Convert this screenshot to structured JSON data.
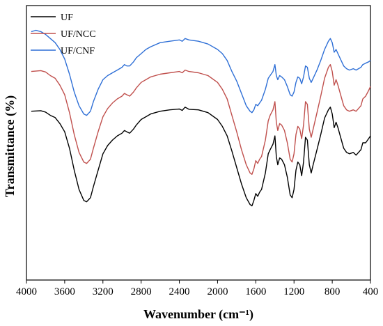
{
  "chart_data": {
    "type": "line",
    "xlabel": "Wavenumber (cm⁻¹)",
    "ylabel": "Transmittance (%)",
    "xlim": [
      4000,
      400
    ],
    "x_reversed": true,
    "y_ticks_shown": false,
    "grid": false,
    "legend_position": "top-left",
    "x_ticks": [
      4000,
      3600,
      3200,
      2800,
      2400,
      2000,
      1600,
      1200,
      800,
      400
    ],
    "ylim": [
      0,
      100
    ],
    "series": [
      {
        "name": "UF",
        "color": "#000000",
        "points": [
          [
            3950,
            61.5
          ],
          [
            3850,
            61.7
          ],
          [
            3800,
            61.2
          ],
          [
            3750,
            60.0
          ],
          [
            3700,
            59.2
          ],
          [
            3650,
            57.0
          ],
          [
            3600,
            54.0
          ],
          [
            3550,
            48.0
          ],
          [
            3500,
            40.0
          ],
          [
            3450,
            33.0
          ],
          [
            3400,
            29.0
          ],
          [
            3370,
            28.5
          ],
          [
            3330,
            30.0
          ],
          [
            3300,
            34.0
          ],
          [
            3250,
            40.0
          ],
          [
            3200,
            46.0
          ],
          [
            3150,
            49.0
          ],
          [
            3100,
            51.0
          ],
          [
            3050,
            52.5
          ],
          [
            3000,
            53.5
          ],
          [
            2975,
            54.5
          ],
          [
            2950,
            54.0
          ],
          [
            2920,
            53.5
          ],
          [
            2880,
            55.0
          ],
          [
            2850,
            56.5
          ],
          [
            2800,
            58.5
          ],
          [
            2750,
            59.5
          ],
          [
            2700,
            60.5
          ],
          [
            2600,
            61.5
          ],
          [
            2500,
            62.0
          ],
          [
            2400,
            62.3
          ],
          [
            2370,
            61.8
          ],
          [
            2340,
            63.0
          ],
          [
            2300,
            62.2
          ],
          [
            2200,
            62.0
          ],
          [
            2100,
            61.0
          ],
          [
            2000,
            58.5
          ],
          [
            1950,
            56.0
          ],
          [
            1900,
            52.5
          ],
          [
            1850,
            47.0
          ],
          [
            1800,
            41.0
          ],
          [
            1750,
            35.0
          ],
          [
            1700,
            30.0
          ],
          [
            1660,
            27.5
          ],
          [
            1640,
            27.0
          ],
          [
            1620,
            29.0
          ],
          [
            1600,
            31.5
          ],
          [
            1580,
            30.5
          ],
          [
            1560,
            32.0
          ],
          [
            1540,
            33.0
          ],
          [
            1500,
            39.0
          ],
          [
            1470,
            46.0
          ],
          [
            1450,
            47.5
          ],
          [
            1420,
            49.5
          ],
          [
            1400,
            52.5
          ],
          [
            1385,
            45.0
          ],
          [
            1370,
            42.0
          ],
          [
            1350,
            44.5
          ],
          [
            1330,
            44.0
          ],
          [
            1300,
            42.0
          ],
          [
            1270,
            37.5
          ],
          [
            1240,
            31.0
          ],
          [
            1220,
            30.0
          ],
          [
            1200,
            33.0
          ],
          [
            1180,
            40.0
          ],
          [
            1160,
            43.0
          ],
          [
            1140,
            42.0
          ],
          [
            1120,
            38.0
          ],
          [
            1100,
            43.0
          ],
          [
            1080,
            52.0
          ],
          [
            1060,
            51.0
          ],
          [
            1040,
            42.0
          ],
          [
            1020,
            39.0
          ],
          [
            1000,
            42.0
          ],
          [
            960,
            47.5
          ],
          [
            920,
            53.0
          ],
          [
            880,
            59.0
          ],
          [
            840,
            62.0
          ],
          [
            820,
            63.0
          ],
          [
            800,
            60.5
          ],
          [
            780,
            55.5
          ],
          [
            760,
            57.5
          ],
          [
            740,
            55.5
          ],
          [
            700,
            50.5
          ],
          [
            680,
            48.0
          ],
          [
            650,
            46.5
          ],
          [
            620,
            46.0
          ],
          [
            580,
            46.5
          ],
          [
            550,
            45.5
          ],
          [
            500,
            47.5
          ],
          [
            480,
            50.0
          ],
          [
            450,
            50.0
          ],
          [
            420,
            51.5
          ],
          [
            400,
            52.5
          ]
        ]
      },
      {
        "name": "UF/NCC",
        "color": "#c0504d",
        "points": [
          [
            3950,
            76.0
          ],
          [
            3850,
            76.3
          ],
          [
            3800,
            75.8
          ],
          [
            3750,
            74.5
          ],
          [
            3700,
            73.5
          ],
          [
            3650,
            71.0
          ],
          [
            3600,
            67.5
          ],
          [
            3550,
            61.0
          ],
          [
            3500,
            53.0
          ],
          [
            3450,
            46.5
          ],
          [
            3400,
            43.0
          ],
          [
            3370,
            42.5
          ],
          [
            3330,
            44.0
          ],
          [
            3300,
            48.0
          ],
          [
            3250,
            54.0
          ],
          [
            3200,
            59.5
          ],
          [
            3150,
            62.5
          ],
          [
            3100,
            64.5
          ],
          [
            3050,
            66.0
          ],
          [
            3000,
            67.0
          ],
          [
            2975,
            68.0
          ],
          [
            2950,
            67.5
          ],
          [
            2920,
            67.0
          ],
          [
            2880,
            68.5
          ],
          [
            2850,
            70.0
          ],
          [
            2800,
            72.0
          ],
          [
            2750,
            73.0
          ],
          [
            2700,
            74.0
          ],
          [
            2600,
            75.0
          ],
          [
            2500,
            75.5
          ],
          [
            2400,
            76.0
          ],
          [
            2370,
            75.5
          ],
          [
            2340,
            76.5
          ],
          [
            2300,
            76.0
          ],
          [
            2200,
            75.5
          ],
          [
            2100,
            74.5
          ],
          [
            2000,
            72.0
          ],
          [
            1950,
            69.5
          ],
          [
            1900,
            66.0
          ],
          [
            1850,
            60.0
          ],
          [
            1800,
            54.0
          ],
          [
            1750,
            47.5
          ],
          [
            1700,
            42.0
          ],
          [
            1660,
            39.0
          ],
          [
            1640,
            38.5
          ],
          [
            1620,
            40.5
          ],
          [
            1600,
            43.5
          ],
          [
            1580,
            42.5
          ],
          [
            1560,
            44.0
          ],
          [
            1540,
            45.0
          ],
          [
            1500,
            51.0
          ],
          [
            1470,
            58.0
          ],
          [
            1450,
            60.0
          ],
          [
            1420,
            62.0
          ],
          [
            1400,
            65.0
          ],
          [
            1385,
            57.5
          ],
          [
            1370,
            54.5
          ],
          [
            1350,
            57.0
          ],
          [
            1330,
            56.5
          ],
          [
            1300,
            54.5
          ],
          [
            1270,
            50.0
          ],
          [
            1240,
            44.0
          ],
          [
            1220,
            43.0
          ],
          [
            1200,
            46.0
          ],
          [
            1180,
            53.0
          ],
          [
            1160,
            56.0
          ],
          [
            1140,
            55.0
          ],
          [
            1120,
            51.5
          ],
          [
            1100,
            56.5
          ],
          [
            1080,
            65.0
          ],
          [
            1060,
            64.0
          ],
          [
            1040,
            55.0
          ],
          [
            1020,
            52.0
          ],
          [
            1000,
            55.0
          ],
          [
            960,
            61.0
          ],
          [
            920,
            67.0
          ],
          [
            880,
            73.5
          ],
          [
            840,
            77.5
          ],
          [
            820,
            78.5
          ],
          [
            800,
            76.0
          ],
          [
            780,
            71.0
          ],
          [
            760,
            73.0
          ],
          [
            740,
            71.0
          ],
          [
            700,
            66.0
          ],
          [
            680,
            63.5
          ],
          [
            650,
            62.0
          ],
          [
            620,
            61.5
          ],
          [
            580,
            62.0
          ],
          [
            550,
            61.5
          ],
          [
            500,
            63.5
          ],
          [
            480,
            66.0
          ],
          [
            450,
            67.0
          ],
          [
            420,
            69.0
          ],
          [
            400,
            70.5
          ]
        ]
      },
      {
        "name": "UF/CNF",
        "color": "#2e6fd6",
        "points": [
          [
            3950,
            90.5
          ],
          [
            3900,
            91.0
          ],
          [
            3850,
            90.5
          ],
          [
            3800,
            89.5
          ],
          [
            3750,
            88.0
          ],
          [
            3700,
            86.5
          ],
          [
            3650,
            84.0
          ],
          [
            3600,
            80.5
          ],
          [
            3550,
            75.0
          ],
          [
            3500,
            68.5
          ],
          [
            3450,
            63.5
          ],
          [
            3400,
            60.5
          ],
          [
            3370,
            60.0
          ],
          [
            3330,
            61.5
          ],
          [
            3300,
            65.0
          ],
          [
            3250,
            69.5
          ],
          [
            3200,
            73.0
          ],
          [
            3150,
            74.5
          ],
          [
            3100,
            75.5
          ],
          [
            3050,
            76.5
          ],
          [
            3000,
            77.5
          ],
          [
            2975,
            78.5
          ],
          [
            2950,
            78.0
          ],
          [
            2920,
            78.0
          ],
          [
            2880,
            79.5
          ],
          [
            2850,
            81.0
          ],
          [
            2800,
            82.5
          ],
          [
            2750,
            84.0
          ],
          [
            2700,
            85.0
          ],
          [
            2600,
            86.5
          ],
          [
            2500,
            87.0
          ],
          [
            2400,
            87.5
          ],
          [
            2370,
            87.0
          ],
          [
            2340,
            88.0
          ],
          [
            2300,
            87.5
          ],
          [
            2200,
            87.0
          ],
          [
            2100,
            86.0
          ],
          [
            2000,
            84.0
          ],
          [
            1950,
            82.5
          ],
          [
            1900,
            80.0
          ],
          [
            1850,
            76.0
          ],
          [
            1800,
            72.5
          ],
          [
            1750,
            68.0
          ],
          [
            1700,
            63.5
          ],
          [
            1660,
            61.5
          ],
          [
            1640,
            61.0
          ],
          [
            1620,
            62.0
          ],
          [
            1600,
            64.0
          ],
          [
            1580,
            63.5
          ],
          [
            1560,
            64.5
          ],
          [
            1540,
            65.5
          ],
          [
            1500,
            69.5
          ],
          [
            1470,
            73.5
          ],
          [
            1450,
            74.5
          ],
          [
            1420,
            76.0
          ],
          [
            1400,
            78.5
          ],
          [
            1385,
            74.5
          ],
          [
            1370,
            73.0
          ],
          [
            1350,
            74.5
          ],
          [
            1330,
            74.0
          ],
          [
            1300,
            73.0
          ],
          [
            1270,
            70.5
          ],
          [
            1240,
            67.5
          ],
          [
            1220,
            67.0
          ],
          [
            1200,
            68.5
          ],
          [
            1180,
            72.0
          ],
          [
            1160,
            74.0
          ],
          [
            1140,
            73.5
          ],
          [
            1120,
            71.5
          ],
          [
            1100,
            74.0
          ],
          [
            1080,
            78.0
          ],
          [
            1060,
            77.5
          ],
          [
            1040,
            73.5
          ],
          [
            1020,
            72.0
          ],
          [
            1000,
            73.5
          ],
          [
            960,
            76.5
          ],
          [
            920,
            80.0
          ],
          [
            880,
            84.0
          ],
          [
            840,
            87.0
          ],
          [
            820,
            88.0
          ],
          [
            800,
            86.5
          ],
          [
            780,
            83.0
          ],
          [
            760,
            84.0
          ],
          [
            740,
            82.5
          ],
          [
            700,
            79.5
          ],
          [
            680,
            78.0
          ],
          [
            650,
            77.0
          ],
          [
            620,
            76.5
          ],
          [
            580,
            77.0
          ],
          [
            550,
            76.5
          ],
          [
            500,
            77.5
          ],
          [
            480,
            78.5
          ],
          [
            450,
            79.0
          ],
          [
            420,
            79.5
          ],
          [
            400,
            80.0
          ]
        ]
      }
    ]
  }
}
